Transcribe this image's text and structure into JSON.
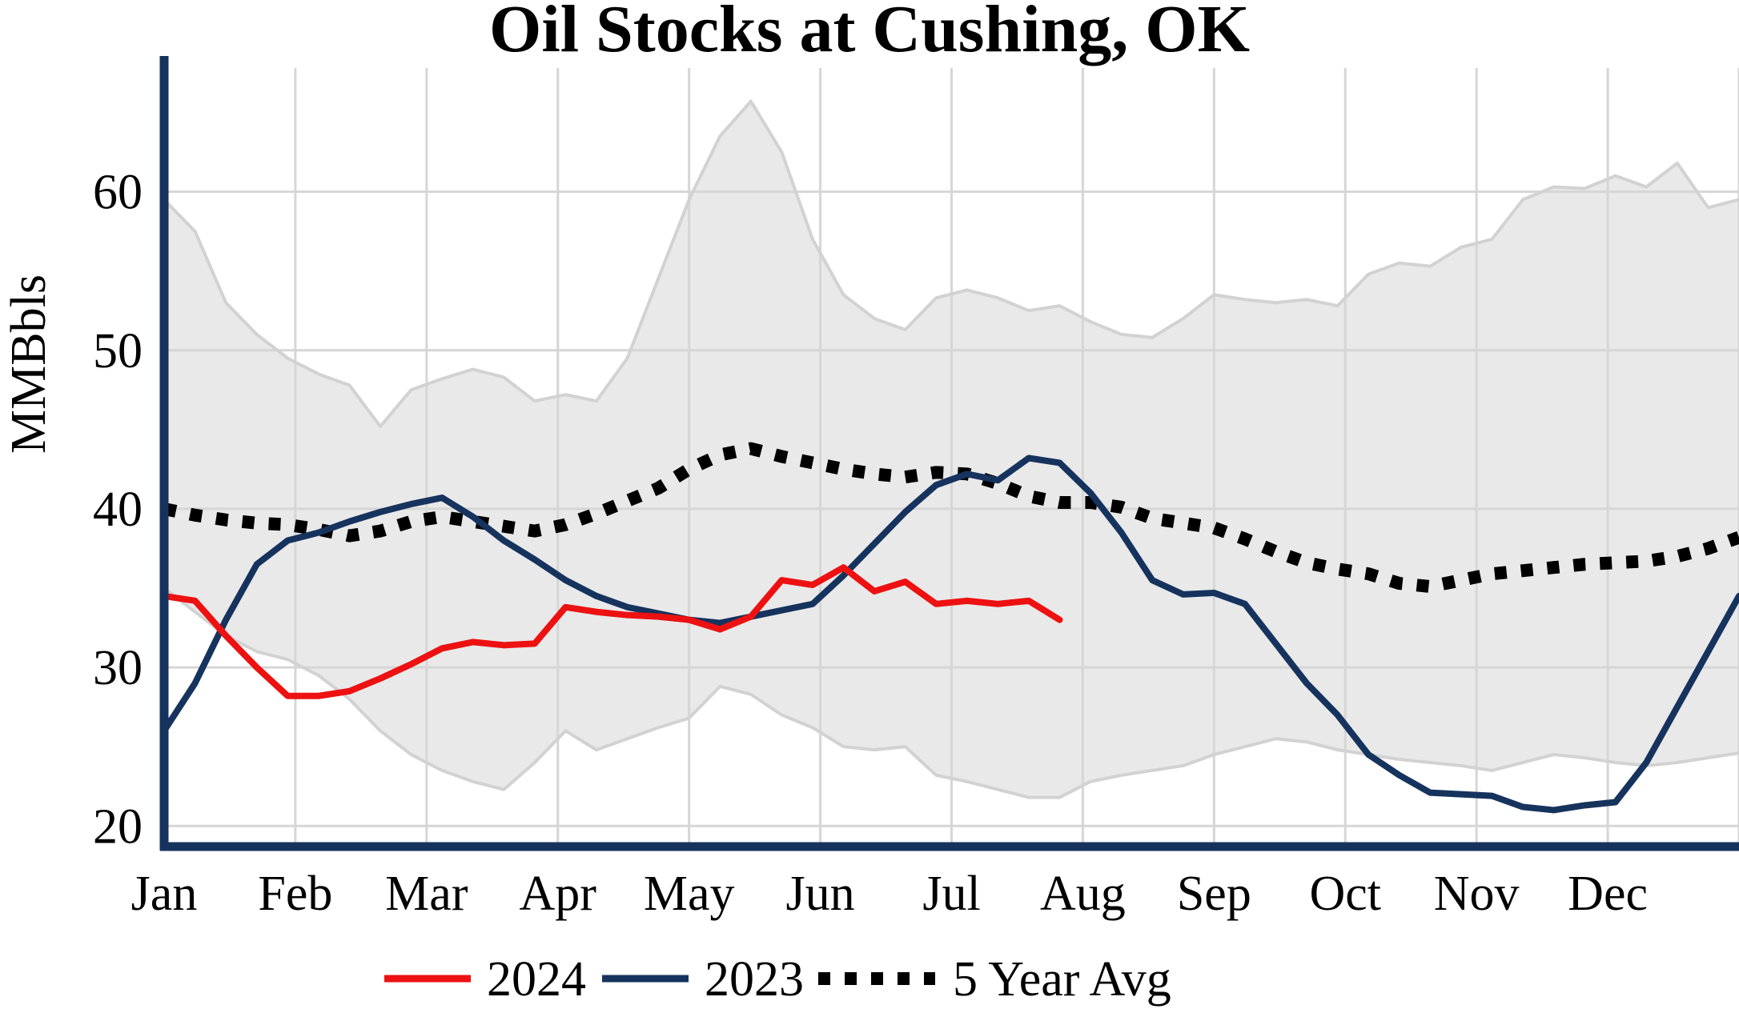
{
  "title": "Oil Stocks at Cushing, OK",
  "ylabel": "MMBbls",
  "legend": [
    {
      "label": "2024",
      "color": "#ed1111",
      "style": "solid"
    },
    {
      "label": "2023",
      "color": "#16335e",
      "style": "solid"
    },
    {
      "label": "5 Year Avg",
      "color": "#000000",
      "style": "dotted"
    }
  ],
  "colors": {
    "axis": "#16335e",
    "grid": "#d6d6d6",
    "band_fill": "#e9e9e9",
    "band_edge": "#d2d2d2",
    "background": "#ffffff"
  },
  "chart_data": {
    "type": "line",
    "title": "Oil Stocks at Cushing, OK",
    "xlabel": "",
    "ylabel": "MMBbls",
    "x_unit": "weekly points, Jan through Dec",
    "categories": [
      "Jan",
      "Feb",
      "Mar",
      "Apr",
      "May",
      "Jun",
      "Jul",
      "Aug",
      "Sep",
      "Oct",
      "Nov",
      "Dec"
    ],
    "y_ticks": [
      20,
      30,
      40,
      50,
      60
    ],
    "ylim": [
      18.7,
      67.8
    ],
    "grid": true,
    "legend_position": "bottom",
    "band": {
      "fill": "#e9e9e9",
      "edge": "#d2d2d2",
      "upper": [
        59.5,
        57.5,
        53.0,
        51.0,
        49.5,
        48.5,
        47.8,
        45.2,
        47.5,
        48.2,
        48.8,
        48.3,
        46.8,
        47.2,
        46.8,
        49.5,
        54.5,
        59.5,
        63.5,
        65.7,
        62.5,
        57.0,
        53.5,
        52.0,
        51.3,
        53.3,
        53.8,
        53.3,
        52.5,
        52.8,
        51.8,
        51.0,
        50.8,
        52.0,
        53.5,
        53.2,
        53.0,
        53.2,
        52.8,
        54.8,
        55.5,
        55.3,
        56.5,
        57.0,
        59.5,
        60.3,
        60.2,
        61.0,
        60.3,
        61.8,
        59.0,
        59.5
      ],
      "lower": [
        35.0,
        33.5,
        32.0,
        31.0,
        30.5,
        29.5,
        28.0,
        26.0,
        24.5,
        23.5,
        22.8,
        22.3,
        24.0,
        26.0,
        24.8,
        25.5,
        26.2,
        26.8,
        28.8,
        28.3,
        27.0,
        26.2,
        25.0,
        24.8,
        25.0,
        23.2,
        22.8,
        22.3,
        21.8,
        21.8,
        22.8,
        23.2,
        23.5,
        23.8,
        24.5,
        25.0,
        25.5,
        25.3,
        24.8,
        24.5,
        24.2,
        24.0,
        23.8,
        23.5,
        24.0,
        24.5,
        24.3,
        24.0,
        23.8,
        24.0,
        24.3,
        24.6
      ]
    },
    "series": [
      {
        "name": "2024",
        "color": "#ed1111",
        "style": "solid",
        "values": [
          34.5,
          34.2,
          32.0,
          30.0,
          28.2,
          28.2,
          28.5,
          29.3,
          30.2,
          31.2,
          31.6,
          31.4,
          31.5,
          33.8,
          33.5,
          33.3,
          33.2,
          33.0,
          32.4,
          33.2,
          35.5,
          35.2,
          36.3,
          34.8,
          35.4,
          34.0,
          34.2,
          34.0,
          34.2,
          33.0
        ]
      },
      {
        "name": "2023",
        "color": "#16335e",
        "style": "solid",
        "values": [
          26.0,
          29.0,
          33.0,
          36.5,
          38.0,
          38.5,
          39.2,
          39.8,
          40.3,
          40.7,
          39.5,
          38.0,
          36.8,
          35.5,
          34.5,
          33.8,
          33.4,
          33.0,
          32.8,
          33.2,
          33.6,
          34.0,
          35.8,
          37.8,
          39.8,
          41.5,
          42.2,
          41.8,
          43.2,
          42.9,
          41.0,
          38.5,
          35.5,
          34.6,
          34.7,
          34.0,
          31.5,
          29.0,
          27.0,
          24.5,
          23.2,
          22.1,
          22.0,
          21.9,
          21.2,
          21.0,
          21.3,
          21.5,
          24.0,
          27.5,
          31.0,
          34.5
        ]
      },
      {
        "name": "5 Year Avg",
        "color": "#000000",
        "style": "dotted",
        "values": [
          40.0,
          39.6,
          39.3,
          39.1,
          39.0,
          38.7,
          38.3,
          38.6,
          39.2,
          39.5,
          39.2,
          38.9,
          38.6,
          39.0,
          39.7,
          40.5,
          41.3,
          42.5,
          43.4,
          43.8,
          43.3,
          42.9,
          42.5,
          42.2,
          42.0,
          42.3,
          42.2,
          41.6,
          40.8,
          40.4,
          40.4,
          40.1,
          39.4,
          39.1,
          38.8,
          38.1,
          37.3,
          36.6,
          36.2,
          35.9,
          35.3,
          35.1,
          35.5,
          35.9,
          36.1,
          36.3,
          36.5,
          36.6,
          36.7,
          37.0,
          37.5,
          38.2
        ]
      }
    ]
  }
}
